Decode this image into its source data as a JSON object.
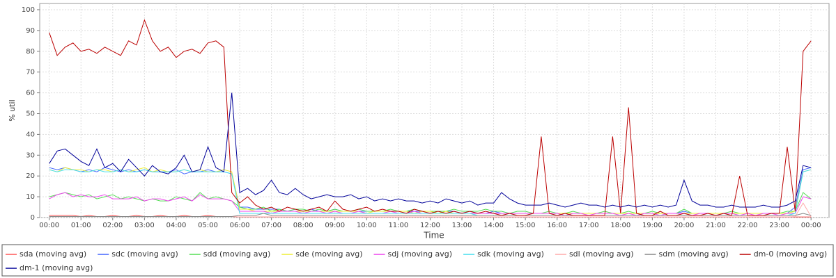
{
  "chart_data": {
    "type": "line",
    "x_label": "Time",
    "y_label": "% util",
    "xlim": [
      -18,
      1474
    ],
    "ylim": [
      0,
      103
    ],
    "xticks": [
      {
        "value": 0,
        "label": "00:00"
      },
      {
        "value": 60,
        "label": "01:00"
      },
      {
        "value": 120,
        "label": "02:00"
      },
      {
        "value": 180,
        "label": "03:00"
      },
      {
        "value": 240,
        "label": "04:00"
      },
      {
        "value": 300,
        "label": "05:00"
      },
      {
        "value": 360,
        "label": "06:00"
      },
      {
        "value": 420,
        "label": "07:00"
      },
      {
        "value": 480,
        "label": "08:00"
      },
      {
        "value": 540,
        "label": "09:00"
      },
      {
        "value": 600,
        "label": "10:00"
      },
      {
        "value": 660,
        "label": "11:00"
      },
      {
        "value": 720,
        "label": "12:00"
      },
      {
        "value": 780,
        "label": "13:00"
      },
      {
        "value": 840,
        "label": "14:00"
      },
      {
        "value": 900,
        "label": "15:00"
      },
      {
        "value": 960,
        "label": "16:00"
      },
      {
        "value": 1020,
        "label": "17:00"
      },
      {
        "value": 1080,
        "label": "18:00"
      },
      {
        "value": 1140,
        "label": "19:00"
      },
      {
        "value": 1200,
        "label": "20:00"
      },
      {
        "value": 1260,
        "label": "21:00"
      },
      {
        "value": 1320,
        "label": "22:00"
      },
      {
        "value": 1380,
        "label": "23:00"
      },
      {
        "value": 1440,
        "label": "00:00"
      }
    ],
    "yticks": [
      0,
      10,
      20,
      30,
      40,
      50,
      60,
      70,
      80,
      90,
      100
    ],
    "grid": true,
    "x": [
      0,
      15,
      30,
      45,
      60,
      75,
      90,
      105,
      120,
      135,
      150,
      165,
      180,
      195,
      210,
      225,
      240,
      255,
      270,
      285,
      300,
      315,
      330,
      345,
      360,
      375,
      390,
      405,
      420,
      435,
      450,
      465,
      480,
      495,
      510,
      525,
      540,
      555,
      570,
      585,
      600,
      615,
      630,
      645,
      660,
      675,
      690,
      705,
      720,
      735,
      750,
      765,
      780,
      795,
      810,
      825,
      840,
      855,
      870,
      885,
      900,
      915,
      930,
      945,
      960,
      975,
      990,
      1005,
      1020,
      1035,
      1050,
      1065,
      1080,
      1095,
      1110,
      1125,
      1140,
      1155,
      1170,
      1185,
      1200,
      1215,
      1230,
      1245,
      1260,
      1275,
      1290,
      1305,
      1320,
      1335,
      1350,
      1365,
      1380,
      1395,
      1410,
      1425,
      1440
    ],
    "series": [
      {
        "name": "sda (moving avg)",
        "color": "#ff5555",
        "values": [
          1,
          1,
          1,
          1,
          0.5,
          1,
          0.5,
          0.5,
          1,
          0.5,
          0.5,
          1,
          0.5,
          0.5,
          1,
          0.5,
          0.5,
          1,
          0.5,
          0.5,
          1,
          0.5,
          0.5,
          0.5,
          0.3,
          0.3,
          0.3,
          0.3,
          0.3,
          0.3,
          0.3,
          0.3,
          0.3,
          0.3,
          0.3,
          0.3,
          0.3,
          0.3,
          0.3,
          0.3,
          0.3,
          0.3,
          0.3,
          0.3,
          0.3,
          0.3,
          0.3,
          0.3,
          0.3,
          0.3,
          0.3,
          0.3,
          0.3,
          0.3,
          0.3,
          0.3,
          0.3,
          0.3,
          0.3,
          0.3,
          0.3,
          0.3,
          0.3,
          0.3,
          0.3,
          0.3,
          0.3,
          0.3,
          0.3,
          0.3,
          0.3,
          0.3,
          0.3,
          0.3,
          0.3,
          0.3,
          0.3,
          0.3,
          0.3,
          0.3,
          0.3,
          0.3,
          0.3,
          0.3,
          0.3,
          0.3,
          0.3,
          0.3,
          0.3,
          0.3,
          0.3,
          0.3,
          0.3,
          0.3,
          0.3,
          0.3,
          0.3
        ]
      },
      {
        "name": "sdc (moving avg)",
        "color": "#4466ff",
        "values": [
          24,
          23,
          24,
          23,
          22,
          23,
          22,
          24,
          23,
          22,
          23,
          22,
          23,
          22,
          22,
          22,
          23,
          21,
          22,
          22,
          23,
          22,
          22,
          21,
          5,
          5,
          4,
          4,
          4,
          4,
          3,
          4,
          3,
          4,
          3,
          3,
          4,
          3,
          3,
          3,
          3,
          3,
          3,
          3,
          3,
          3,
          3,
          3,
          3,
          3,
          3,
          3,
          2,
          3,
          2,
          2,
          3,
          2,
          2,
          2,
          2,
          2,
          2,
          2,
          2,
          2,
          2,
          2,
          2,
          2,
          2,
          2,
          2,
          2,
          2,
          2,
          2,
          2,
          2,
          2,
          3,
          2,
          2,
          2,
          2,
          2,
          2,
          2,
          2,
          2,
          2,
          2,
          2,
          2,
          5,
          23,
          24
        ]
      },
      {
        "name": "sdd (moving avg)",
        "color": "#55dd55",
        "values": [
          10,
          11,
          12,
          11,
          10,
          11,
          9,
          10,
          11,
          9,
          10,
          9,
          8,
          9,
          8,
          8,
          10,
          9,
          8,
          12,
          9,
          10,
          9,
          8,
          5,
          4,
          4,
          5,
          3,
          4,
          3,
          4,
          4,
          3,
          4,
          3,
          4,
          3,
          3,
          4,
          3,
          3,
          3,
          4,
          3,
          3,
          4,
          3,
          3,
          3,
          3,
          4,
          3,
          3,
          3,
          4,
          3,
          3,
          2,
          3,
          3,
          2,
          2,
          3,
          2,
          2,
          3,
          2,
          2,
          2,
          3,
          2,
          2,
          3,
          2,
          2,
          3,
          2,
          2,
          2,
          4,
          2,
          2,
          2,
          2,
          2,
          3,
          2,
          2,
          2,
          2,
          2,
          2,
          3,
          3,
          12,
          9
        ]
      },
      {
        "name": "sde (moving avg)",
        "color": "#eeee33",
        "values": [
          23,
          22,
          24,
          23,
          23,
          22,
          23,
          23,
          22,
          23,
          22,
          23,
          24,
          22,
          23,
          22,
          22,
          23,
          22,
          23,
          22,
          22,
          23,
          22,
          4,
          4,
          3,
          3,
          3,
          3,
          3,
          3,
          3,
          3,
          3,
          3,
          3,
          3,
          3,
          3,
          2,
          3,
          3,
          3,
          3,
          3,
          2,
          3,
          3,
          2,
          3,
          2,
          2,
          2,
          2,
          2,
          2,
          2,
          2,
          2,
          2,
          2,
          2,
          2,
          2,
          2,
          2,
          2,
          2,
          2,
          2,
          2,
          2,
          2,
          2,
          2,
          2,
          2,
          2,
          2,
          2,
          2,
          2,
          2,
          2,
          2,
          2,
          2,
          2,
          2,
          2,
          2,
          2,
          2,
          3,
          22,
          23
        ]
      },
      {
        "name": "sdj (moving avg)",
        "color": "#ee44ee",
        "values": [
          9,
          11,
          12,
          10,
          11,
          10,
          10,
          11,
          9,
          9,
          9,
          10,
          8,
          9,
          9,
          8,
          9,
          10,
          8,
          11,
          9,
          9,
          9,
          8,
          3,
          3,
          3,
          3,
          2,
          3,
          3,
          3,
          2,
          3,
          3,
          2,
          3,
          2,
          2,
          3,
          2,
          2,
          2,
          3,
          2,
          2,
          3,
          2,
          2,
          2,
          2,
          2,
          2,
          2,
          2,
          2,
          2,
          2,
          2,
          2,
          2,
          2,
          2,
          2,
          2,
          1,
          2,
          2,
          1,
          2,
          2,
          2,
          1,
          2,
          1,
          2,
          2,
          1,
          2,
          2,
          2,
          1,
          2,
          2,
          1,
          2,
          2,
          1,
          2,
          1,
          2,
          2,
          1,
          2,
          2,
          10,
          9
        ]
      },
      {
        "name": "sdk (moving avg)",
        "color": "#44ddee",
        "values": [
          23,
          22,
          23,
          23,
          22,
          22,
          23,
          22,
          22,
          23,
          22,
          22,
          23,
          22,
          22,
          22,
          22,
          23,
          22,
          22,
          22,
          22,
          22,
          21,
          2,
          2,
          2,
          2,
          2,
          2,
          2,
          2,
          2,
          2,
          2,
          2,
          2,
          2,
          2,
          2,
          2,
          2,
          2,
          2,
          2,
          2,
          2,
          2,
          2,
          2,
          2,
          2,
          2,
          2,
          1,
          1,
          1,
          1,
          1,
          1,
          1,
          1,
          1,
          1,
          1,
          1,
          1,
          1,
          1,
          1,
          1,
          1,
          1,
          1,
          1,
          1,
          1,
          1,
          1,
          1,
          1,
          1,
          1,
          1,
          1,
          1,
          1,
          1,
          1,
          1,
          1,
          1,
          1,
          1,
          2,
          22,
          23
        ]
      },
      {
        "name": "sdl (moving avg)",
        "color": "#ffaaaa",
        "values": [
          0.5,
          0.5,
          0.5,
          0.5,
          0.5,
          0.5,
          0.5,
          0.5,
          0.5,
          0.5,
          0.5,
          0.5,
          0.5,
          0.5,
          0.5,
          0.5,
          0.5,
          0.5,
          0.5,
          0.5,
          0.5,
          0.5,
          0.5,
          0.5,
          0.3,
          0.3,
          0.3,
          0.3,
          0.3,
          0.3,
          0.3,
          0.3,
          0.3,
          0.3,
          0.3,
          0.3,
          0.3,
          0.3,
          0.3,
          0.3,
          0.3,
          0.3,
          0.3,
          0.3,
          0.3,
          0.3,
          0.3,
          0.3,
          0.3,
          0.3,
          0.3,
          0.3,
          0.3,
          0.3,
          0.3,
          0.3,
          0.3,
          0.3,
          0.3,
          0.3,
          0.3,
          0.3,
          0.3,
          0.3,
          0.3,
          0.3,
          0.3,
          0.3,
          0.3,
          0.3,
          0.3,
          0.3,
          0.3,
          0.3,
          0.3,
          0.3,
          0.3,
          0.3,
          0.3,
          0.3,
          0.3,
          0.3,
          0.3,
          0.3,
          0.3,
          0.3,
          0.3,
          0.3,
          0.3,
          0.3,
          0.3,
          0.3,
          0.3,
          0.3,
          0.5,
          7,
          0.5
        ]
      },
      {
        "name": "sdm (moving avg)",
        "color": "#888888",
        "values": [
          0.5,
          0.5,
          0.5,
          0.5,
          0.5,
          0.5,
          0.5,
          0.5,
          0.5,
          0.5,
          0.5,
          0.5,
          0.5,
          0.5,
          0.5,
          0.5,
          0.5,
          0.5,
          0.5,
          0.5,
          0.5,
          0.5,
          0.5,
          0.5,
          1,
          1,
          1,
          2,
          1,
          1,
          1,
          1,
          1,
          1,
          1,
          1,
          1,
          1,
          1,
          1,
          1,
          1,
          1,
          1,
          1,
          1,
          1,
          1,
          1,
          1,
          1,
          1,
          1,
          1,
          1,
          1,
          1,
          1,
          1,
          1,
          1,
          1,
          1,
          1,
          1,
          1,
          1,
          1,
          1,
          1,
          1,
          1,
          1,
          1,
          1,
          1,
          1,
          1,
          1,
          1,
          1,
          1,
          1,
          1,
          1,
          1,
          1,
          1,
          1,
          1,
          1,
          1,
          1,
          1,
          1,
          2,
          1
        ]
      },
      {
        "name": "dm-0 (moving avg)",
        "color": "#bb0000",
        "values": [
          89,
          78,
          82,
          84,
          80,
          81,
          79,
          82,
          80,
          78,
          85,
          83,
          95,
          85,
          80,
          82,
          77,
          80,
          81,
          79,
          84,
          85,
          82,
          12,
          7,
          10,
          6,
          4,
          5,
          3,
          5,
          4,
          3,
          4,
          5,
          3,
          8,
          4,
          3,
          4,
          5,
          3,
          4,
          3,
          3,
          2,
          4,
          3,
          2,
          3,
          2,
          3,
          2,
          3,
          2,
          3,
          2,
          1,
          2,
          1,
          1,
          2,
          39,
          2,
          1,
          2,
          1,
          1,
          1,
          1,
          1,
          39,
          2,
          53,
          2,
          1,
          1,
          3,
          1,
          1,
          2,
          1,
          1,
          2,
          1,
          2,
          1,
          20,
          1,
          1,
          1,
          2,
          2,
          34,
          3,
          80,
          85
        ]
      },
      {
        "name": "dm-1 (moving avg)",
        "color": "#000099",
        "values": [
          26,
          32,
          33,
          30,
          27,
          25,
          33,
          24,
          26,
          22,
          28,
          24,
          20,
          25,
          22,
          21,
          24,
          30,
          22,
          23,
          34,
          24,
          22,
          60,
          12,
          14,
          11,
          13,
          18,
          12,
          11,
          14,
          11,
          9,
          10,
          11,
          10,
          10,
          11,
          9,
          10,
          8,
          9,
          8,
          9,
          8,
          8,
          7,
          8,
          7,
          9,
          8,
          7,
          8,
          6,
          7,
          7,
          12,
          9,
          7,
          6,
          6,
          6,
          7,
          6,
          5,
          6,
          7,
          6,
          6,
          5,
          6,
          5,
          6,
          5,
          6,
          5,
          6,
          5,
          6,
          18,
          8,
          6,
          6,
          5,
          5,
          6,
          5,
          5,
          5,
          6,
          5,
          5,
          6,
          8,
          25,
          24
        ]
      }
    ]
  }
}
